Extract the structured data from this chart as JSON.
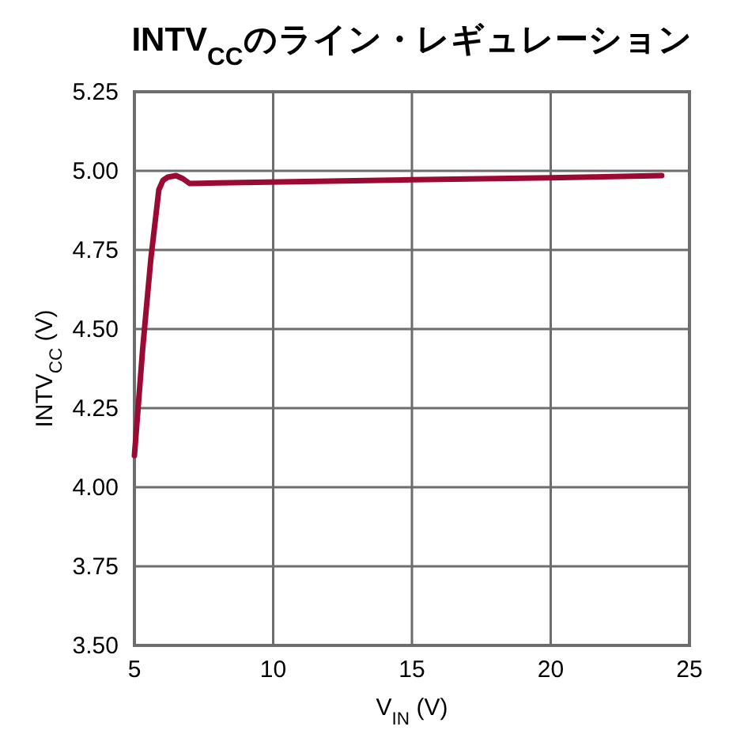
{
  "chart_data": {
    "type": "line",
    "title": "INTV$_{CC}$のライン・レギュレーション",
    "xlabel": "V$_{IN}$ (V)",
    "ylabel": "INTV$_{CC}$ (V)",
    "series": [
      {
        "color": "#9b0a33",
        "x": [
          5,
          5.3,
          5.59,
          5.88,
          6.03,
          6.2,
          6.5,
          6.75,
          6.99,
          8,
          11.6,
          15,
          20,
          24
        ],
        "values": [
          4.1,
          4.44,
          4.72,
          4.94,
          4.97,
          4.98,
          4.985,
          4.975,
          4.96,
          4.962,
          4.967,
          4.972,
          4.978,
          4.985
        ]
      }
    ],
    "xlim": [
      5,
      25
    ],
    "xticks": [
      5,
      10,
      15,
      20,
      25
    ],
    "ylim": [
      3.5,
      5.25
    ],
    "yticks": [
      {
        "value": 3.5,
        "label": "3.50"
      },
      {
        "value": 3.75,
        "label": "3.75"
      },
      {
        "value": 4,
        "label": "4.00"
      },
      {
        "value": 4.25,
        "label": "4.25"
      },
      {
        "value": 4.5,
        "label": "4.50"
      },
      {
        "value": 4.75,
        "label": "4.75"
      },
      {
        "value": 5,
        "label": "5.00"
      },
      {
        "value": 5.25,
        "label": "5.25"
      }
    ],
    "grid": true,
    "line_style": "solid"
  }
}
